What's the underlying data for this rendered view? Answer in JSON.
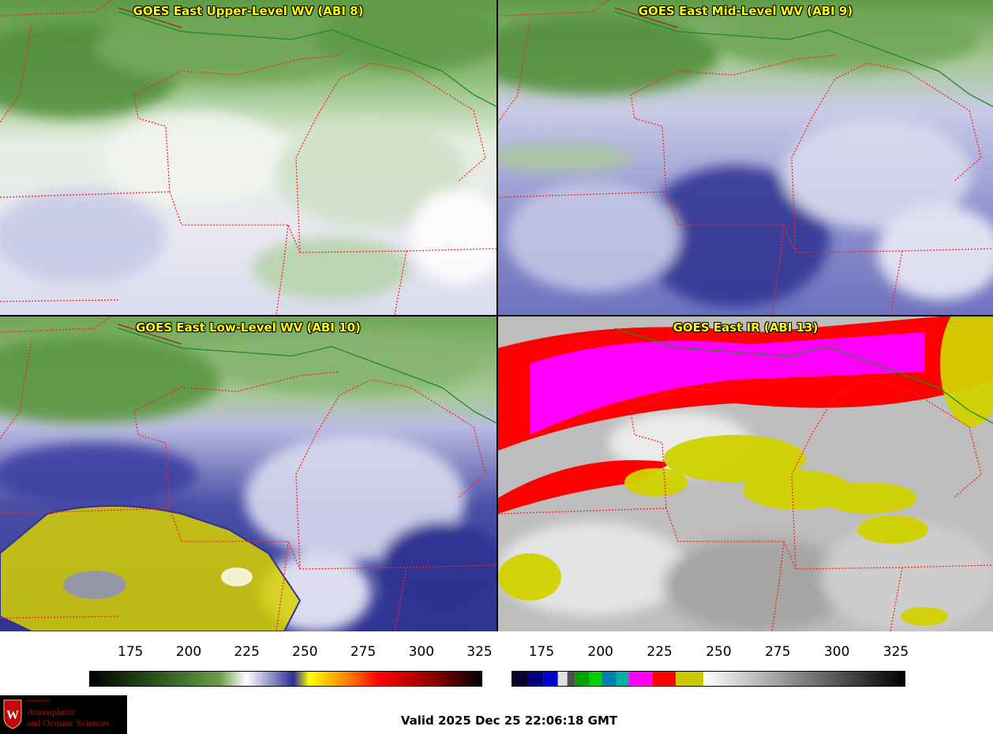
{
  "panels": [
    {
      "id": "upper",
      "title": "GOES East Upper-Level WV (ABI 8)",
      "colortable": "wv"
    },
    {
      "id": "mid",
      "title": "GOES East Mid-Level WV (ABI 9)",
      "colortable": "wv"
    },
    {
      "id": "low",
      "title": "GOES East Low-Level WV (ABI 10)",
      "colortable": "wv"
    },
    {
      "id": "ir",
      "title": "GOES East IR (ABI 13)",
      "colortable": "ir"
    }
  ],
  "colorbars": {
    "wv": {
      "ticks": [
        "175",
        "200",
        "225",
        "250",
        "275",
        "300",
        "325"
      ],
      "colors": [
        "#000000",
        "#2e5a1c",
        "#6a9b4a",
        "#ffffff",
        "#2b2f94",
        "#ffff00",
        "#ff8c00",
        "#ff0000",
        "#8b0000",
        "#000000"
      ]
    },
    "ir": {
      "ticks": [
        "175",
        "200",
        "225",
        "250",
        "275",
        "300",
        "325"
      ],
      "colors": [
        "#000000",
        "#0000c8",
        "#ffffff",
        "#00c000",
        "#00a0c0",
        "#ff00ff",
        "#ff0000",
        "#c8c800",
        "#ffffff",
        "#000000"
      ]
    }
  },
  "logo": {
    "department": "Department of",
    "line1": "Atmospheric",
    "line2": "and Oceanic Sciences"
  },
  "valid_time": "Valid 2025 Dec 25 22:06:18 GMT",
  "map_colors": {
    "state_borders": "#ff2020",
    "country_border": "#1e8c1e",
    "wv_moist": "#ffffff",
    "wv_dry_green": "#5f9a42",
    "wv_blue": "#2e3391",
    "ir_magenta": "#ff00ff",
    "ir_red": "#ff0000",
    "ir_yellow": "#d2d200",
    "ir_gray": "#a8a8a8"
  }
}
